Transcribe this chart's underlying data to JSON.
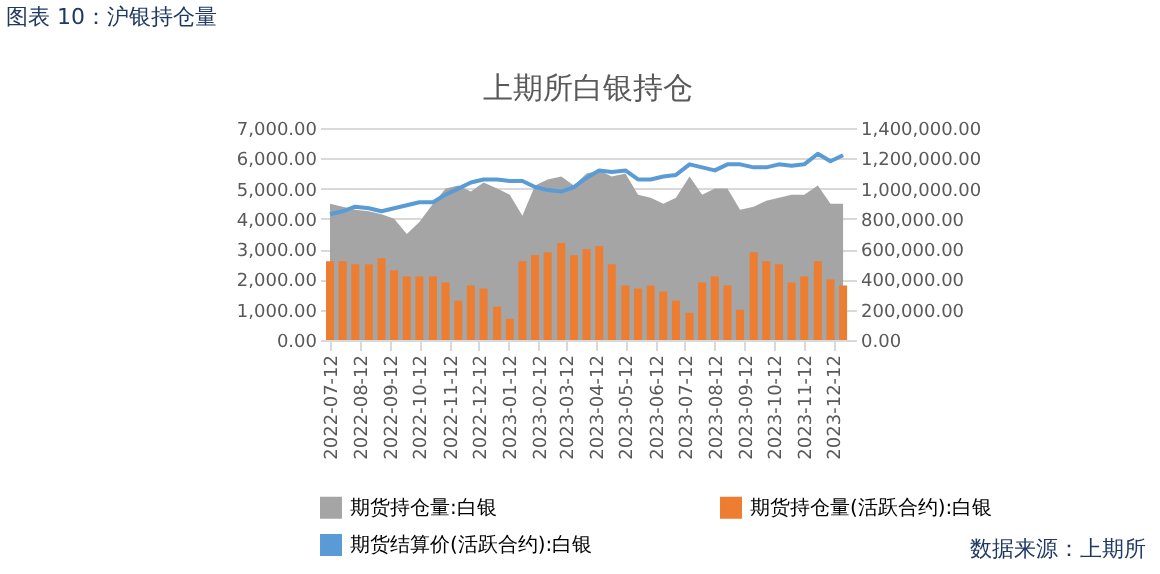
{
  "chart_data": {
    "type": "bar",
    "title": "图表 10：沪银持仓量",
    "subtitle": "上期所白银持仓",
    "annotations": [
      "数据来源：上期所"
    ],
    "x": [
      "2022-07-12",
      "2022-07-25",
      "2022-08-07",
      "2022-08-21",
      "2022-09-03",
      "2022-09-16",
      "2022-09-29",
      "2022-10-12",
      "2022-10-26",
      "2022-11-08",
      "2022-11-21",
      "2022-12-04",
      "2022-12-17",
      "2022-12-31",
      "2023-01-13",
      "2023-01-26",
      "2023-02-08",
      "2023-02-21",
      "2023-03-07",
      "2023-03-20",
      "2023-04-02",
      "2023-04-15",
      "2023-04-28",
      "2023-05-12",
      "2023-05-25",
      "2023-06-07",
      "2023-06-20",
      "2023-07-03",
      "2023-07-17",
      "2023-07-30",
      "2023-08-12",
      "2023-08-25",
      "2023-09-07",
      "2023-09-21",
      "2023-10-04",
      "2023-10-17",
      "2023-10-30",
      "2023-11-12",
      "2023-11-26",
      "2023-12-09",
      "2023-12-22"
    ],
    "series": [
      {
        "name": "期货持仓量:白银",
        "type": "area",
        "axis": "y2",
        "color": "#a5a5a5",
        "values": [
          900000,
          880000,
          860000,
          850000,
          830000,
          800000,
          700000,
          780000,
          900000,
          1000000,
          1020000,
          980000,
          1040000,
          1000000,
          960000,
          820000,
          1020000,
          1060000,
          1080000,
          1020000,
          1100000,
          1120000,
          1080000,
          1100000,
          960000,
          940000,
          900000,
          940000,
          1080000,
          960000,
          1000000,
          1000000,
          860000,
          880000,
          920000,
          940000,
          960000,
          960000,
          1020000,
          900000,
          900000
        ]
      },
      {
        "name": "期货持仓量(活跃合约):白银",
        "axis": "y2",
        "color": "#ed7d31",
        "values": [
          520000,
          520000,
          500000,
          500000,
          540000,
          460000,
          420000,
          420000,
          420000,
          380000,
          260000,
          360000,
          340000,
          220000,
          140000,
          520000,
          560000,
          580000,
          640000,
          560000,
          600000,
          620000,
          500000,
          360000,
          340000,
          360000,
          320000,
          260000,
          180000,
          380000,
          420000,
          360000,
          200000,
          580000,
          520000,
          500000,
          380000,
          420000,
          520000,
          400000,
          360000
        ]
      },
      {
        "name": "期货结算价(活跃合约):白银",
        "type": "line",
        "axis": "y",
        "color": "#5b9bd5",
        "values": [
          4150,
          4250,
          4400,
          4350,
          4250,
          4350,
          4450,
          4550,
          4550,
          4800,
          5000,
          5200,
          5300,
          5300,
          5250,
          5250,
          5050,
          4950,
          4900,
          5050,
          5350,
          5600,
          5550,
          5600,
          5300,
          5300,
          5400,
          5450,
          5800,
          5700,
          5600,
          5800,
          5800,
          5700,
          5700,
          5800,
          5750,
          5800,
          6150,
          5900,
          6100
        ]
      }
    ],
    "xlim": [
      "2022-07-12",
      "2023-12-25"
    ],
    "xticks": [
      "2022-07-12",
      "2022-08-12",
      "2022-09-12",
      "2022-10-12",
      "2022-11-12",
      "2022-12-12",
      "2023-01-12",
      "2023-02-12",
      "2023-03-12",
      "2023-04-12",
      "2023-05-12",
      "2023-06-12",
      "2023-07-12",
      "2023-08-12",
      "2023-09-12",
      "2023-10-12",
      "2023-11-12",
      "2023-12-12"
    ],
    "ylim": [
      0,
      7000
    ],
    "yticks": [
      {
        "value": 0,
        "label": "0.00"
      },
      {
        "value": 1000,
        "label": "1,000.00"
      },
      {
        "value": 2000,
        "label": "2,000.00"
      },
      {
        "value": 3000,
        "label": "3,000.00"
      },
      {
        "value": 4000,
        "label": "4,000.00"
      },
      {
        "value": 5000,
        "label": "5,000.00"
      },
      {
        "value": 6000,
        "label": "6,000.00"
      },
      {
        "value": 7000,
        "label": "7,000.00"
      }
    ],
    "y2lim": [
      0,
      1400000
    ],
    "y2ticks": [
      {
        "value": 0,
        "label": "0.00"
      },
      {
        "value": 200000,
        "label": "200,000.00"
      },
      {
        "value": 400000,
        "label": "400,000.00"
      },
      {
        "value": 600000,
        "label": "600,000.00"
      },
      {
        "value": 800000,
        "label": "800,000.00"
      },
      {
        "value": 1000000,
        "label": "1,000,000.00"
      },
      {
        "value": 1200000,
        "label": "1,200,000.00"
      },
      {
        "value": 1400000,
        "label": "1,400,000.00"
      }
    ],
    "grid": "y",
    "legend": "bottom"
  }
}
